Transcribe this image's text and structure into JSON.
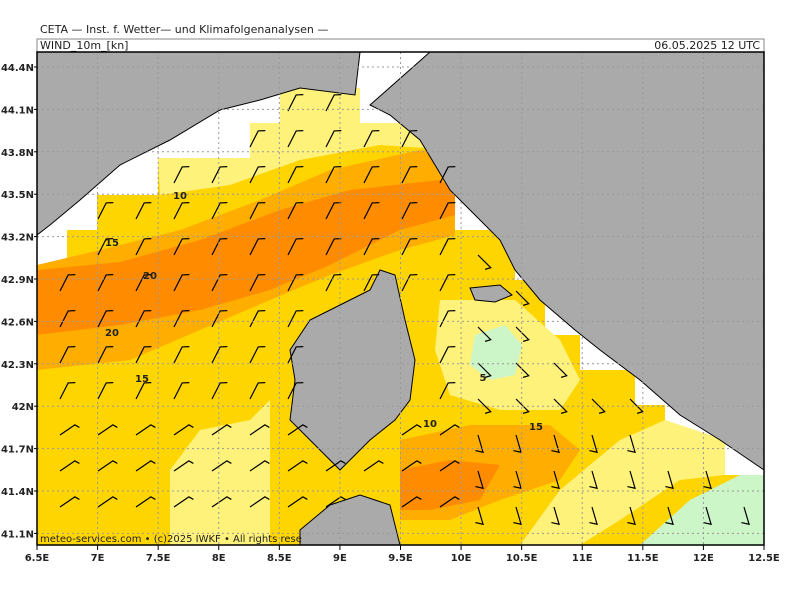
{
  "header": "CETA — Inst. f. Wetter— und Klimafolgenanalysen —",
  "map": {
    "title": "WIND_10m_[kn]",
    "valid_time": "06.05.2025 12 UTC",
    "lat_labels": [
      "44.4N",
      "44.1N",
      "43.8N",
      "43.5N",
      "43.2N",
      "42.9N",
      "42.6N",
      "42.3N",
      "42N",
      "41.7N",
      "41.4N",
      "41.1N"
    ],
    "lon_labels": [
      "6.5E",
      "7E",
      "7.5E",
      "8E",
      "8.5E",
      "9E",
      "9.5E",
      "10E",
      "10.5E",
      "11E",
      "11.5E",
      "12E",
      "12.5E"
    ],
    "contour_labels": [
      "10",
      "15",
      "20",
      "20",
      "15",
      "5",
      "10",
      "15"
    ],
    "credit": "meteo-services.com • (c)2025 IWKF • All rights rese"
  }
}
